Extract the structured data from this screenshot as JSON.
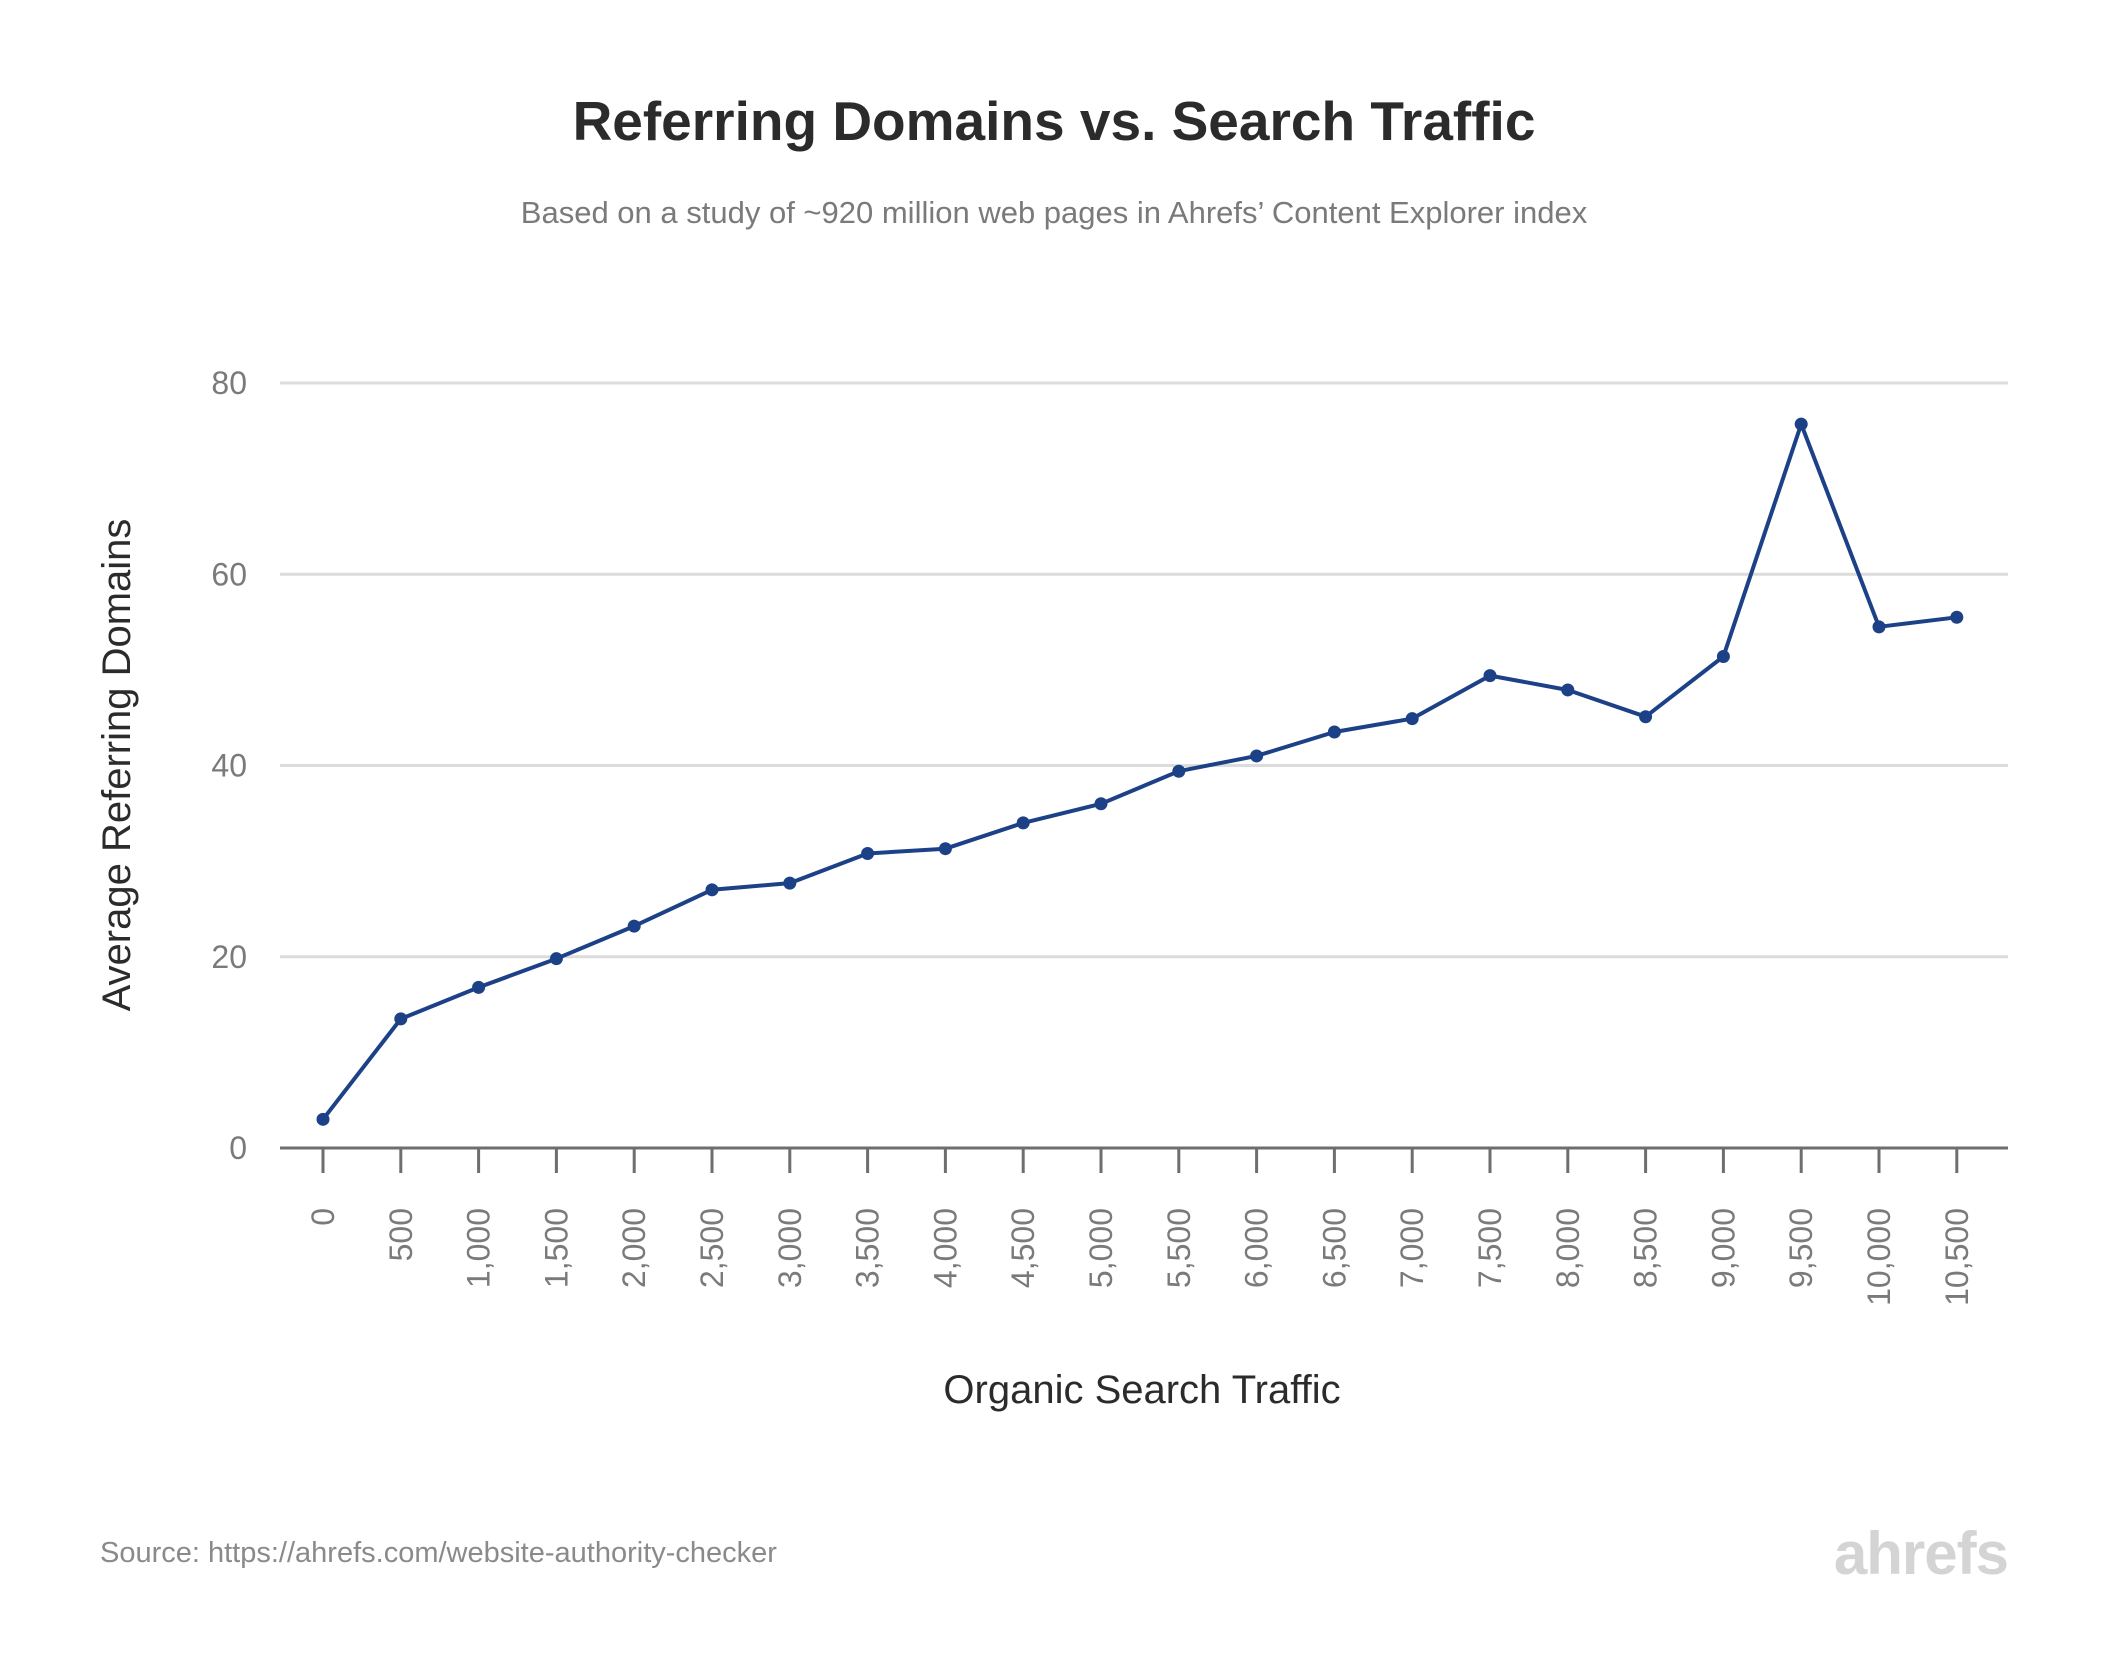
{
  "chart_data": {
    "type": "line",
    "title": "Referring Domains vs. Search Traffic",
    "subtitle": "Based on a study of ~920 million web pages in Ahrefs’ Content Explorer index",
    "xlabel": "Organic Search Traffic",
    "ylabel": "Average Referring Domains",
    "categories": [
      "0",
      "500",
      "1,000",
      "1,500",
      "2,000",
      "2,500",
      "3,000",
      "3,500",
      "4,000",
      "4,500",
      "5,000",
      "5,500",
      "6,000",
      "6,500",
      "7,000",
      "7,500",
      "8,000",
      "8,500",
      "9,000",
      "9,500",
      "10,000",
      "10,500"
    ],
    "series": [
      {
        "values": [
          3.0,
          13.5,
          16.8,
          19.8,
          23.2,
          27.0,
          27.7,
          30.8,
          31.3,
          34.0,
          36.0,
          39.4,
          41.0,
          43.5,
          44.9,
          49.4,
          47.9,
          45.1,
          51.4,
          75.7,
          54.5,
          55.5
        ]
      }
    ],
    "ylim": [
      0,
      80
    ],
    "yticks": [
      "0",
      "20",
      "40",
      "60",
      "80"
    ],
    "grid": true,
    "legend": "none",
    "colors": {
      "line": "#1d4187",
      "grid": "#dcdcdc",
      "axis": "#6e6e6e"
    }
  },
  "footer": {
    "source": "Source: https://ahrefs.com/website-authority-checker",
    "brand": "ahrefs"
  }
}
